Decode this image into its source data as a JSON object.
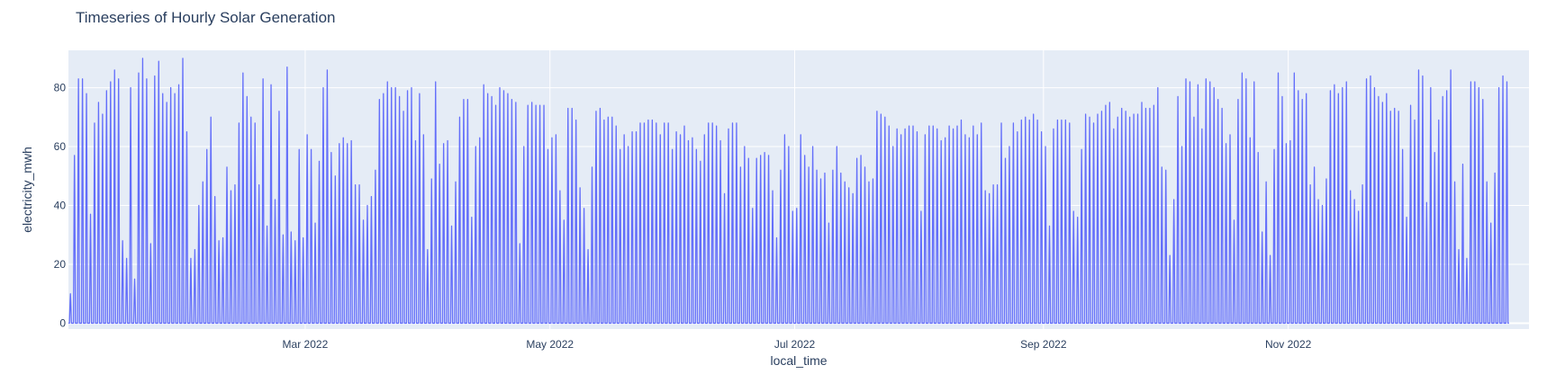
{
  "chart_data": {
    "type": "line",
    "title": "Timeseries of Hourly Solar Generation",
    "xlabel": "local_time",
    "ylabel": "electricity_mwh",
    "xlim": [
      "2022-01-01",
      "2022-12-31"
    ],
    "ylim": [
      -2,
      92.7
    ],
    "yticks": [
      0,
      20,
      40,
      60,
      80
    ],
    "xticks": [
      {
        "date": "2022-03-01",
        "label": "Mar 2022"
      },
      {
        "date": "2022-05-01",
        "label": "May 2022"
      },
      {
        "date": "2022-07-01",
        "label": "Jul 2022"
      },
      {
        "date": "2022-09-01",
        "label": "Sep 2022"
      },
      {
        "date": "2022-11-01",
        "label": "Nov 2022"
      }
    ],
    "grid": true,
    "series": [
      {
        "color": "#636efa",
        "start_date": "2022-01-01",
        "daily_peak_values": [
          10,
          57,
          83,
          83,
          78,
          37,
          68,
          75,
          71,
          79,
          82,
          86,
          83,
          28,
          22,
          80,
          15,
          85,
          90,
          83,
          27,
          84,
          89,
          78,
          75,
          80,
          78,
          81,
          90,
          65,
          22,
          25,
          40,
          48,
          59,
          70,
          43,
          28,
          29,
          53,
          45,
          47,
          68,
          85,
          77,
          70,
          68,
          47,
          83,
          33,
          81,
          42,
          72,
          30,
          87,
          31,
          28,
          59,
          29,
          64,
          59,
          34,
          55,
          80,
          86,
          58,
          50,
          61,
          63,
          61,
          62,
          47,
          47,
          35,
          40,
          43,
          52,
          76,
          78,
          82,
          80,
          80,
          77,
          72,
          79,
          80,
          62,
          78,
          64,
          25,
          49,
          82,
          54,
          61,
          62,
          33,
          48,
          70,
          76,
          76,
          36,
          60,
          63,
          81,
          78,
          77,
          74,
          80,
          79,
          78,
          76,
          75,
          27,
          60,
          74,
          75,
          74,
          74,
          74,
          59,
          63,
          64,
          45,
          35,
          73,
          73,
          69,
          46,
          39,
          25,
          53,
          72,
          73,
          69,
          70,
          70,
          67,
          59,
          64,
          60,
          65,
          65,
          68,
          68,
          69,
          69,
          68,
          64,
          68,
          68,
          59,
          65,
          64,
          67,
          62,
          63,
          59,
          55,
          64,
          68,
          68,
          67,
          62,
          44,
          66,
          68,
          68,
          53,
          60,
          56,
          39,
          56,
          57,
          58,
          57,
          45,
          29,
          52,
          64,
          60,
          38,
          39,
          64,
          57,
          53,
          60,
          52,
          49,
          51,
          34,
          52,
          60,
          51,
          48,
          46,
          44,
          56,
          57,
          53,
          48,
          49,
          72,
          71,
          70,
          67,
          60,
          66,
          64,
          66,
          67,
          67,
          65,
          38,
          64,
          67,
          67,
          66,
          62,
          63,
          67,
          66,
          67,
          69,
          64,
          63,
          67,
          64,
          68,
          45,
          44,
          47,
          47,
          68,
          56,
          60,
          68,
          65,
          69,
          70,
          69,
          71,
          69,
          65,
          60,
          33,
          66,
          69,
          69,
          69,
          68,
          38,
          36,
          59,
          71,
          70,
          68,
          71,
          72,
          74,
          75,
          66,
          70,
          73,
          72,
          70,
          71,
          71,
          75,
          73,
          73,
          74,
          80,
          53,
          52,
          23,
          42,
          77,
          60,
          83,
          82,
          70,
          81,
          66,
          83,
          82,
          80,
          76,
          73,
          61,
          64,
          35,
          76,
          85,
          83,
          63,
          82,
          58,
          31,
          48,
          23,
          59,
          85,
          77,
          61,
          62,
          85,
          79,
          76,
          78,
          47,
          53,
          42,
          40,
          49,
          79,
          81,
          78,
          80,
          82,
          45,
          42,
          38,
          47,
          83,
          84,
          80,
          77,
          75,
          78,
          72,
          73,
          72,
          59,
          36,
          74,
          69,
          86,
          84,
          41,
          80,
          58,
          69,
          77,
          79,
          86,
          48,
          25,
          54,
          22,
          82,
          82,
          80,
          76,
          48,
          34,
          51,
          80,
          84,
          82
        ]
      }
    ]
  }
}
